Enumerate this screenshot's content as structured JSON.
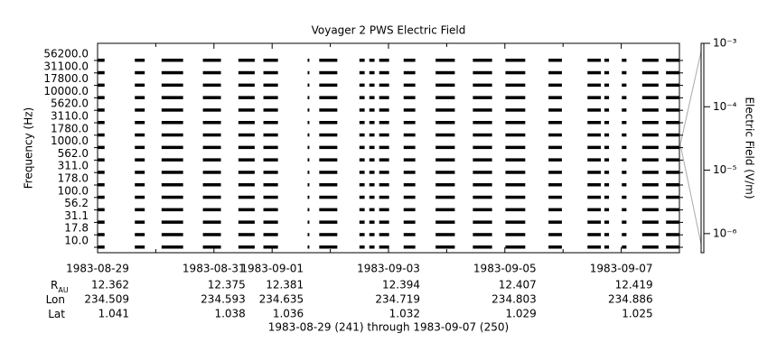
{
  "chart_data": {
    "type": "spectrogram",
    "title": "Voyager 2 PWS Electric Field",
    "y_label": "Frequency (Hz)",
    "y2_label": "Electric Field (V/m)",
    "x_label": "1983-08-29 (241) through 1983-09-07 (250)",
    "categories": [
      "56200.0",
      "31100.0",
      "17800.0",
      "10000.0",
      "5620.0",
      "3110.0",
      "1780.0",
      "1000.0",
      "562.0",
      "311.0",
      "178.0",
      "100.0",
      "56.2",
      "31.1",
      "17.8",
      "10.0"
    ],
    "xlim": [
      0,
      10
    ],
    "xticks": [
      {
        "value": 0,
        "label": "1983-08-29"
      },
      {
        "value": 2,
        "label": "1983-08-31"
      },
      {
        "value": 3,
        "label": "1983-09-01"
      },
      {
        "value": 5,
        "label": "1983-09-03"
      },
      {
        "value": 7,
        "label": "1983-09-05"
      },
      {
        "value": 9,
        "label": "1983-09-07"
      }
    ],
    "xminor": [
      1,
      4,
      6,
      8
    ],
    "y2lim": [
      5e-07,
      0.001
    ],
    "y2log": true,
    "y2ticks": [
      {
        "value": 0.001,
        "label": "10⁻³"
      },
      {
        "value": 0.0001,
        "label": "10⁻⁴"
      },
      {
        "value": 1e-05,
        "label": "10⁻⁵"
      },
      {
        "value": 1e-06,
        "label": "10⁻⁶"
      }
    ],
    "color": "#000000",
    "coverage": [
      [
        0,
        0.12
      ],
      [
        0.64,
        0.81
      ],
      [
        1.1,
        1.47
      ],
      [
        1.81,
        2.12
      ],
      [
        2.42,
        2.7
      ],
      [
        2.85,
        3.1
      ],
      [
        3.61,
        3.64
      ],
      [
        3.81,
        4.12
      ],
      [
        4.5,
        4.59
      ],
      [
        4.67,
        4.76
      ],
      [
        4.84,
        5.01
      ],
      [
        5.26,
        5.46
      ],
      [
        5.81,
        6.14
      ],
      [
        6.45,
        6.78
      ],
      [
        7.01,
        7.35
      ],
      [
        7.75,
        7.98
      ],
      [
        8.42,
        8.65
      ],
      [
        8.71,
        8.79
      ],
      [
        9.01,
        9.09
      ],
      [
        9.36,
        9.64
      ],
      [
        9.77,
        10
      ]
    ],
    "ephemeris": {
      "row_labels": [
        {
          "label": "R",
          "sub": "AU"
        },
        {
          "label": "Lon"
        },
        {
          "label": "Lat"
        }
      ],
      "rows": [
        [
          "12.362",
          "12.375",
          "12.381",
          "12.394",
          "12.407",
          "12.419"
        ],
        [
          "234.509",
          "234.593",
          "234.635",
          "234.719",
          "234.803",
          "234.886"
        ],
        [
          "1.041",
          "1.038",
          "1.036",
          "1.032",
          "1.029",
          "1.025"
        ]
      ]
    }
  }
}
